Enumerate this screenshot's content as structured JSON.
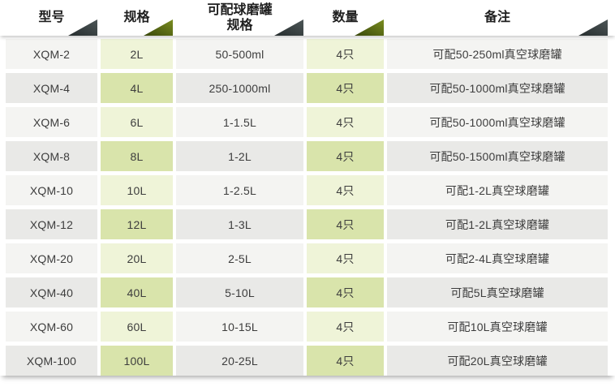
{
  "colors": {
    "page_bg": "#ffffff",
    "header_text": "#1f1f1f",
    "body_text": "#3d3d3d",
    "row_gray_light": "#f4f4f2",
    "row_gray_dark": "#e9e9e7",
    "row_green_light": "#eff4d8",
    "row_green_dark": "#d9e4ab",
    "fold_dark_from": "#4d5657",
    "fold_dark_to": "#262d2e",
    "fold_olive_from": "#7a8d20",
    "fold_olive_to": "#39470c"
  },
  "table": {
    "columns": [
      {
        "key": "model",
        "label": "型号",
        "fold": "dark"
      },
      {
        "key": "capacity",
        "label": "规格",
        "fold": "olive"
      },
      {
        "key": "jar_spec",
        "label": "可配球磨罐\n规格",
        "fold": "dark"
      },
      {
        "key": "quantity",
        "label": "数量",
        "fold": "olive"
      },
      {
        "key": "notes",
        "label": "备注",
        "fold": "dark"
      }
    ],
    "rows": [
      [
        "XQM-2",
        "2L",
        "50-500ml",
        "4只",
        "可配50-250ml真空球磨罐"
      ],
      [
        "XQM-4",
        "4L",
        "250-1000ml",
        "4只",
        "可配50-1000ml真空球磨罐"
      ],
      [
        "XQM-6",
        "6L",
        "1-1.5L",
        "4只",
        "可配50-1000ml真空球磨罐"
      ],
      [
        "XQM-8",
        "8L",
        "1-2L",
        "4只",
        "可配50-1500ml真空球磨罐"
      ],
      [
        "XQM-10",
        "10L",
        "1-2.5L",
        "4只",
        "可配1-2L真空球磨罐"
      ],
      [
        "XQM-12",
        "12L",
        "1-3L",
        "4只",
        "可配1-2L真空球磨罐"
      ],
      [
        "XQM-20",
        "20L",
        "2-5L",
        "4只",
        "可配2-4L真空球磨罐"
      ],
      [
        "XQM-40",
        "40L",
        "5-10L",
        "4只",
        "可配5L真空球磨罐"
      ],
      [
        "XQM-60",
        "60L",
        "10-15L",
        "4只",
        "可配10L真空球磨罐"
      ],
      [
        "XQM-100",
        "100L",
        "20-25L",
        "4只",
        "可配20L真空球磨罐"
      ]
    ]
  }
}
